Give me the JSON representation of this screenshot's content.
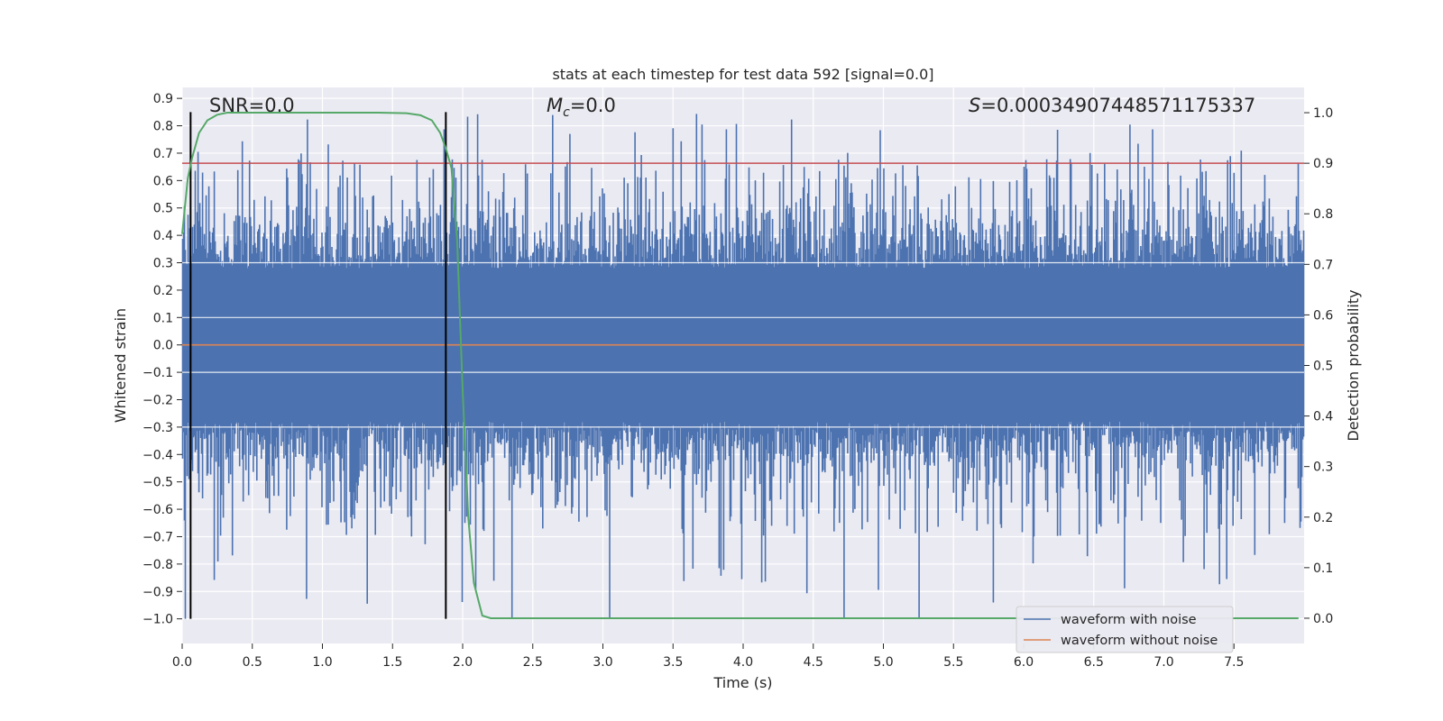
{
  "chart_data": {
    "type": "line",
    "title": "stats at each timestep for test data 592 [signal=0.0]",
    "xlabel": "Time (s)",
    "ylabel_left": "Whitened strain",
    "ylabel_right": "Detection probability",
    "xlim": [
      0,
      8
    ],
    "ylim_left": [
      -1.09,
      0.94
    ],
    "ylim_right": [
      -0.05,
      1.05
    ],
    "x_ticks": [
      0.0,
      0.5,
      1.0,
      1.5,
      2.0,
      2.5,
      3.0,
      3.5,
      4.0,
      4.5,
      5.0,
      5.5,
      6.0,
      6.5,
      7.0,
      7.5
    ],
    "x_tick_labels": [
      "0.0",
      "0.5",
      "1.0",
      "1.5",
      "2.0",
      "2.5",
      "3.0",
      "3.5",
      "4.0",
      "4.5",
      "5.0",
      "5.5",
      "6.0",
      "6.5",
      "7.0",
      "7.5"
    ],
    "y_left_ticks": [
      0.9,
      0.8,
      0.7,
      0.6,
      0.5,
      0.4,
      0.3,
      0.2,
      0.1,
      0.0,
      -0.1,
      -0.2,
      -0.3,
      -0.4,
      -0.5,
      -0.6,
      -0.7,
      -0.8,
      -0.9,
      -1.0
    ],
    "y_left_tick_labels": [
      "0.9",
      "0.8",
      "0.7",
      "0.6",
      "0.5",
      "0.4",
      "0.3",
      "0.2",
      "0.1",
      "0.0",
      "−0.1",
      "−0.2",
      "−0.3",
      "−0.4",
      "−0.5",
      "−0.6",
      "−0.7",
      "−0.8",
      "−0.9",
      "−1.0"
    ],
    "y_right_ticks": [
      1.0,
      0.9,
      0.8,
      0.7,
      0.6,
      0.5,
      0.4,
      0.3,
      0.2,
      0.1,
      0.0
    ],
    "y_right_tick_labels": [
      "1.0",
      "0.9",
      "0.8",
      "0.7",
      "0.6",
      "0.5",
      "0.4",
      "0.3",
      "0.2",
      "0.1",
      "0.0"
    ],
    "annotations": {
      "snr": "SNR=0.0",
      "mc_symbol": "M",
      "mc_sub": "c",
      "mc_value": "=0.0",
      "s_symbol": "S",
      "s_value": "=0.00034907448571175337"
    },
    "series": [
      {
        "name": "waveform with noise",
        "color": "#4c72b0",
        "axis": "left",
        "noise_sigma": 0.2,
        "typical_peak": 0.6,
        "max_peak": 0.85,
        "min_trough": -1.0
      },
      {
        "name": "waveform without noise",
        "color": "#dd8452",
        "axis": "left",
        "constant": 0.0
      },
      {
        "name": "detection probability",
        "color": "#55a868",
        "axis": "right",
        "x": [
          0.0,
          0.04,
          0.07,
          0.12,
          0.18,
          0.25,
          0.32,
          0.4,
          0.6,
          1.0,
          1.4,
          1.6,
          1.7,
          1.78,
          1.84,
          1.88,
          1.92,
          1.96,
          2.0,
          2.04,
          2.08,
          2.14,
          2.2,
          2.4,
          3.0,
          5.0,
          7.96
        ],
        "values": [
          0.76,
          0.87,
          0.91,
          0.96,
          0.985,
          0.996,
          1.0,
          1.0,
          1.0,
          1.0,
          1.0,
          0.999,
          0.995,
          0.985,
          0.96,
          0.93,
          0.89,
          0.75,
          0.45,
          0.2,
          0.07,
          0.005,
          0.0,
          0.0,
          0.0,
          0.0,
          0.0
        ]
      }
    ],
    "threshold_line": {
      "value": 0.9,
      "axis": "right",
      "color": "#c44e52"
    },
    "vertical_lines": [
      {
        "x": 0.06,
        "color": "#000000"
      },
      {
        "x": 1.88,
        "color": "#000000"
      }
    ],
    "legend": {
      "position": "bottom-right",
      "entries": [
        {
          "label": "waveform with noise",
          "color": "#4c72b0"
        },
        {
          "label": "waveform without noise",
          "color": "#dd8452"
        }
      ]
    },
    "grid": true,
    "background": "#eaeaf2"
  }
}
